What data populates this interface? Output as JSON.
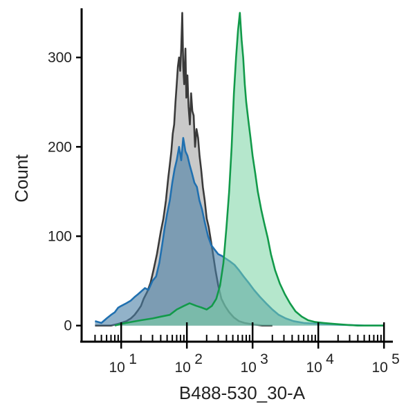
{
  "chart_data": {
    "type": "area",
    "title": "",
    "xlabel": "B488-530_30-A",
    "ylabel": "Count",
    "x_scale": "log10",
    "xlim": [
      2.5,
      130000
    ],
    "ylim": [
      -18,
      355
    ],
    "y_ticks": [
      {
        "value": 0,
        "label": "0"
      },
      {
        "value": 100,
        "label": "100"
      },
      {
        "value": 200,
        "label": "200"
      },
      {
        "value": 300,
        "label": "300"
      }
    ],
    "x_ticks": [
      {
        "value": 10,
        "base": "10",
        "exp": "1"
      },
      {
        "value": 100,
        "base": "10",
        "exp": "2"
      },
      {
        "value": 1000,
        "base": "10",
        "exp": "3"
      },
      {
        "value": 10000,
        "base": "10",
        "exp": "4"
      },
      {
        "value": 100000,
        "base": "10",
        "exp": "5"
      }
    ],
    "x_minor_ticks": [
      4,
      5,
      6,
      7,
      8,
      9,
      20,
      30,
      40,
      50,
      60,
      70,
      80,
      90,
      200,
      300,
      400,
      500,
      600,
      700,
      800,
      900,
      2000,
      3000,
      4000,
      5000,
      6000,
      7000,
      8000,
      9000,
      20000,
      30000,
      40000,
      50000,
      60000,
      70000,
      80000,
      90000
    ],
    "grid": false,
    "legend": "none",
    "series": [
      {
        "color": "#3a3a3a",
        "fill": "#bcbcbc",
        "fill_opacity": 0.8,
        "x": [
          4,
          5,
          6,
          7,
          8,
          9,
          10,
          12,
          14,
          16,
          18,
          20,
          22,
          25,
          28,
          31,
          35,
          40,
          44,
          48,
          52,
          55,
          58,
          61,
          64,
          67,
          70,
          73,
          76,
          79,
          82,
          85,
          88,
          91,
          95,
          98,
          102,
          106,
          111,
          116,
          121,
          127,
          133,
          140,
          148,
          156,
          165,
          175,
          187,
          200,
          215,
          232,
          250,
          272,
          300,
          335,
          380,
          440,
          520,
          620,
          750,
          900,
          1100,
          1400,
          2000
        ],
        "y": [
          0,
          0,
          0,
          0,
          1,
          2,
          3,
          5,
          8,
          12,
          17,
          22,
          30,
          38,
          48,
          62,
          80,
          105,
          120,
          140,
          165,
          180,
          195,
          215,
          225,
          250,
          270,
          290,
          300,
          285,
          310,
          350,
          290,
          270,
          310,
          255,
          280,
          245,
          225,
          260,
          240,
          235,
          200,
          220,
          210,
          190,
          175,
          155,
          140,
          120,
          110,
          95,
          80,
          62,
          45,
          30,
          22,
          15,
          9,
          5,
          3,
          2,
          1,
          0,
          0
        ]
      },
      {
        "color": "#2070b0",
        "fill": "#4a7fa5",
        "fill_opacity": 0.6,
        "x": [
          4,
          5,
          6,
          7,
          8,
          9,
          10,
          12,
          14,
          16,
          18,
          20,
          23,
          26,
          30,
          34,
          38,
          42,
          46,
          50,
          55,
          60,
          65,
          70,
          76,
          82,
          88,
          95,
          102,
          110,
          120,
          130,
          142,
          155,
          170,
          188,
          210,
          235,
          265,
          300,
          340,
          390,
          450,
          530,
          620,
          730,
          870,
          1050,
          1300,
          1600,
          2000,
          2500,
          3200,
          4200,
          6000,
          10000,
          20000,
          50000,
          100000
        ],
        "y": [
          5,
          3,
          8,
          12,
          15,
          20,
          22,
          25,
          28,
          32,
          35,
          38,
          42,
          40,
          50,
          55,
          70,
          90,
          110,
          125,
          140,
          160,
          175,
          185,
          200,
          185,
          210,
          195,
          190,
          180,
          170,
          160,
          155,
          140,
          130,
          115,
          100,
          90,
          85,
          80,
          78,
          75,
          72,
          68,
          62,
          55,
          48,
          40,
          32,
          25,
          18,
          12,
          8,
          5,
          3,
          2,
          1,
          0,
          0
        ]
      },
      {
        "color": "#129a4a",
        "fill": "#79d3a2",
        "fill_opacity": 0.55,
        "x": [
          8,
          10,
          14,
          20,
          30,
          40,
          55,
          70,
          90,
          110,
          140,
          170,
          200,
          240,
          280,
          320,
          360,
          400,
          440,
          480,
          520,
          560,
          600,
          640,
          680,
          720,
          760,
          800,
          860,
          930,
          1000,
          1100,
          1200,
          1350,
          1500,
          1700,
          1900,
          2200,
          2600,
          3100,
          3700,
          4500,
          5600,
          7000,
          9000,
          12000,
          17000,
          25000,
          40000,
          70000,
          100000
        ],
        "y": [
          0,
          2,
          4,
          6,
          8,
          10,
          12,
          18,
          22,
          25,
          22,
          20,
          18,
          22,
          30,
          45,
          70,
          110,
          150,
          200,
          260,
          300,
          330,
          350,
          320,
          300,
          270,
          250,
          230,
          210,
          190,
          170,
          150,
          130,
          115,
          98,
          80,
          62,
          47,
          35,
          25,
          16,
          10,
          6,
          4,
          3,
          2,
          1,
          0,
          0,
          0
        ]
      }
    ]
  }
}
